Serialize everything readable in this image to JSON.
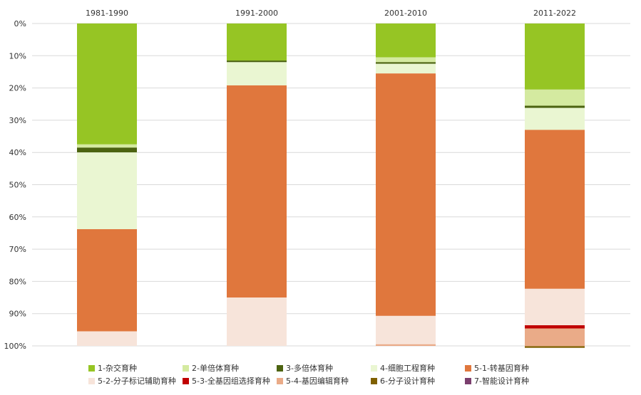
{
  "chart_data": {
    "type": "bar",
    "stacked": true,
    "percent": true,
    "x_axis_position": "top",
    "y_axis_inverted": true,
    "categories": [
      "1981-1990",
      "1991-2000",
      "2001-2010",
      "2011-2022"
    ],
    "y_ticks": [
      "0%",
      "10%",
      "20%",
      "30%",
      "40%",
      "50%",
      "60%",
      "70%",
      "80%",
      "90%",
      "100%"
    ],
    "ylim": [
      0,
      100
    ],
    "grid": true,
    "legend_position": "bottom",
    "series": [
      {
        "name": "1-杂交育种",
        "color": "#96c524",
        "values": [
          37.5,
          11.5,
          10.5,
          20.5
        ]
      },
      {
        "name": "2-单倍体育种",
        "color": "#d4eaa0",
        "values": [
          1.0,
          0.0,
          1.5,
          5.0
        ]
      },
      {
        "name": "3-多倍体育种",
        "color": "#4c6310",
        "values": [
          1.5,
          0.5,
          0.5,
          0.7
        ]
      },
      {
        "name": "4-细胞工程育种",
        "color": "#eaf6d2",
        "values": [
          23.8,
          7.2,
          3.0,
          6.8
        ]
      },
      {
        "name": "5-1-转基因育种",
        "color": "#e0773d",
        "values": [
          31.7,
          65.8,
          75.2,
          49.3
        ]
      },
      {
        "name": "5-2-分子标记辅助育种",
        "color": "#f7e4da",
        "values": [
          4.5,
          15.0,
          8.8,
          11.3
        ]
      },
      {
        "name": "5-3-全基因组选择育种",
        "color": "#c00000",
        "values": [
          0.0,
          0.0,
          0.0,
          1.0
        ]
      },
      {
        "name": "5-4-基因编辑育种",
        "color": "#eaab88",
        "values": [
          0.0,
          0.0,
          0.5,
          5.5
        ]
      },
      {
        "name": "6-分子设计育种",
        "color": "#7f6000",
        "values": [
          0.0,
          0.0,
          0.0,
          0.5
        ]
      },
      {
        "name": "7-智能设计育种",
        "color": "#7b3f6e",
        "values": [
          0.0,
          0.0,
          0.0,
          0.0
        ]
      }
    ]
  }
}
